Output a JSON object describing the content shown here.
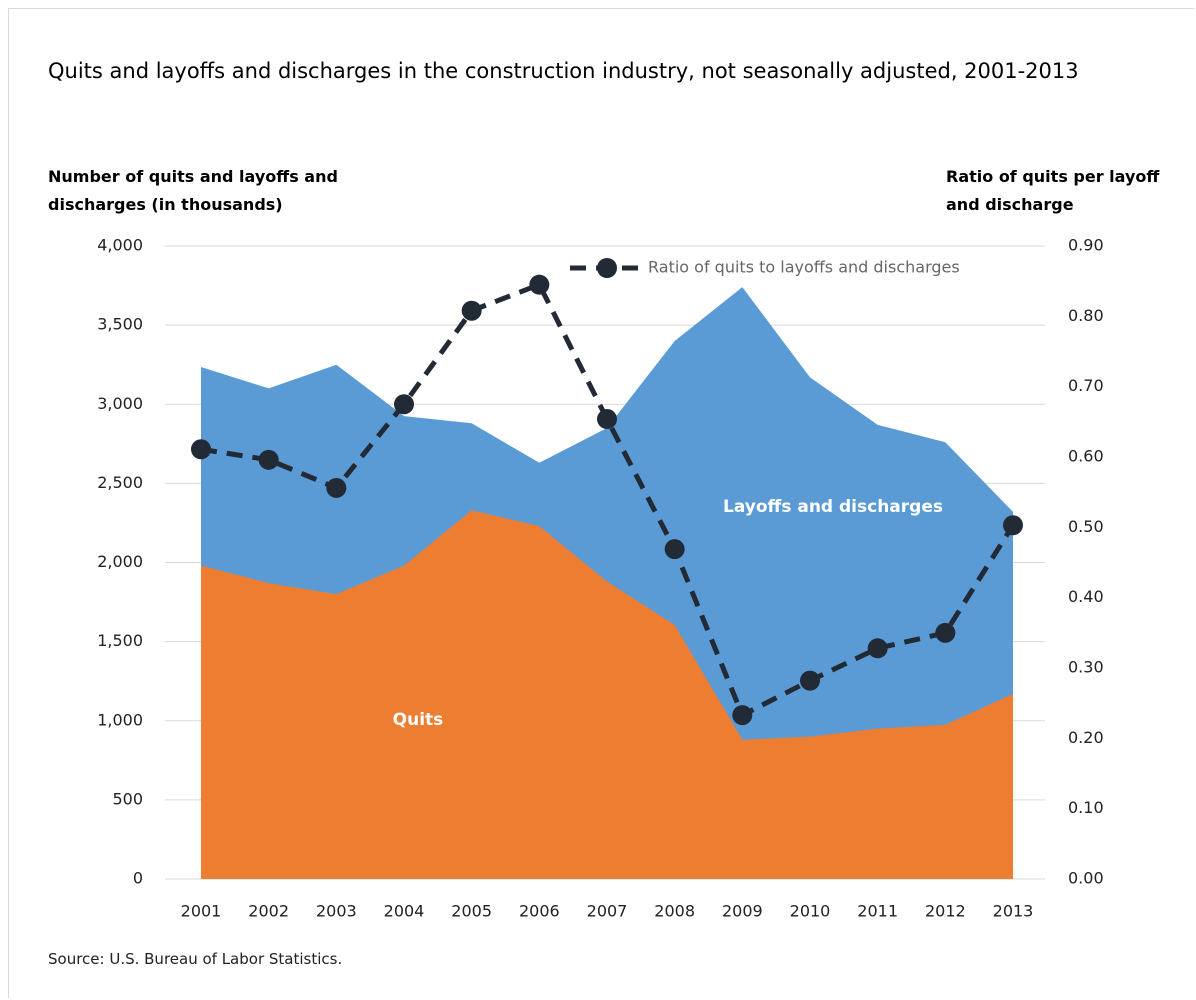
{
  "chart_data": {
    "type": "area-line",
    "title": "Quits and layoffs and discharges in the construction industry, not seasonally adjusted, 2001-2013",
    "ylabel": "Number of quits and layoffs and discharges (in thousands)",
    "y2label": "Ratio of quits per layoff and discharge",
    "source": "Source: U.S. Bureau of Labor Statistics.",
    "categories": [
      "2001",
      "2002",
      "2003",
      "2004",
      "2005",
      "2006",
      "2007",
      "2008",
      "2009",
      "2010",
      "2011",
      "2012",
      "2013"
    ],
    "series": [
      {
        "name": "Layoffs and discharges",
        "color": "#5b9bd5",
        "values": [
          3235,
          3100,
          3250,
          2925,
          2880,
          2630,
          2850,
          3400,
          3740,
          3170,
          2870,
          2760,
          2320
        ]
      },
      {
        "name": "Quits",
        "color": "#ed7d31",
        "values": [
          1980,
          1870,
          1800,
          1980,
          2330,
          2230,
          1880,
          1605,
          880,
          900,
          950,
          975,
          1170
        ]
      },
      {
        "name": "Ratio of quits to layoffs and discharges",
        "color": "#222a35",
        "axis": "y2",
        "values": [
          0.611,
          0.596,
          0.556,
          0.675,
          0.808,
          0.845,
          0.654,
          0.469,
          0.233,
          0.282,
          0.328,
          0.35,
          0.503
        ]
      }
    ],
    "ylim": [
      0,
      4000
    ],
    "yticks": [
      0,
      500,
      {
        "value": 1000,
        "label": "1,000"
      },
      {
        "value": 1500,
        "label": "1,500"
      },
      {
        "value": 2000,
        "label": "2,000"
      },
      {
        "value": 2500,
        "label": "2,500"
      },
      {
        "value": 3000,
        "label": "3,000"
      },
      {
        "value": 3500,
        "label": "3,500"
      },
      {
        "value": 4000,
        "label": "4,000"
      }
    ],
    "y2lim": [
      0,
      0.9
    ],
    "y2ticks": [
      {
        "value": 0,
        "label": "0.00"
      },
      {
        "value": 0.1,
        "label": "0.10"
      },
      {
        "value": 0.2,
        "label": "0.20"
      },
      {
        "value": 0.3,
        "label": "0.30"
      },
      {
        "value": 0.4,
        "label": "0.40"
      },
      {
        "value": 0.5,
        "label": "0.50"
      },
      {
        "value": 0.6,
        "label": "0.60"
      },
      {
        "value": 0.7,
        "label": "0.70"
      },
      {
        "value": 0.8,
        "label": "0.80"
      },
      {
        "value": 0.9,
        "label": "0.90"
      }
    ],
    "grid": true
  }
}
